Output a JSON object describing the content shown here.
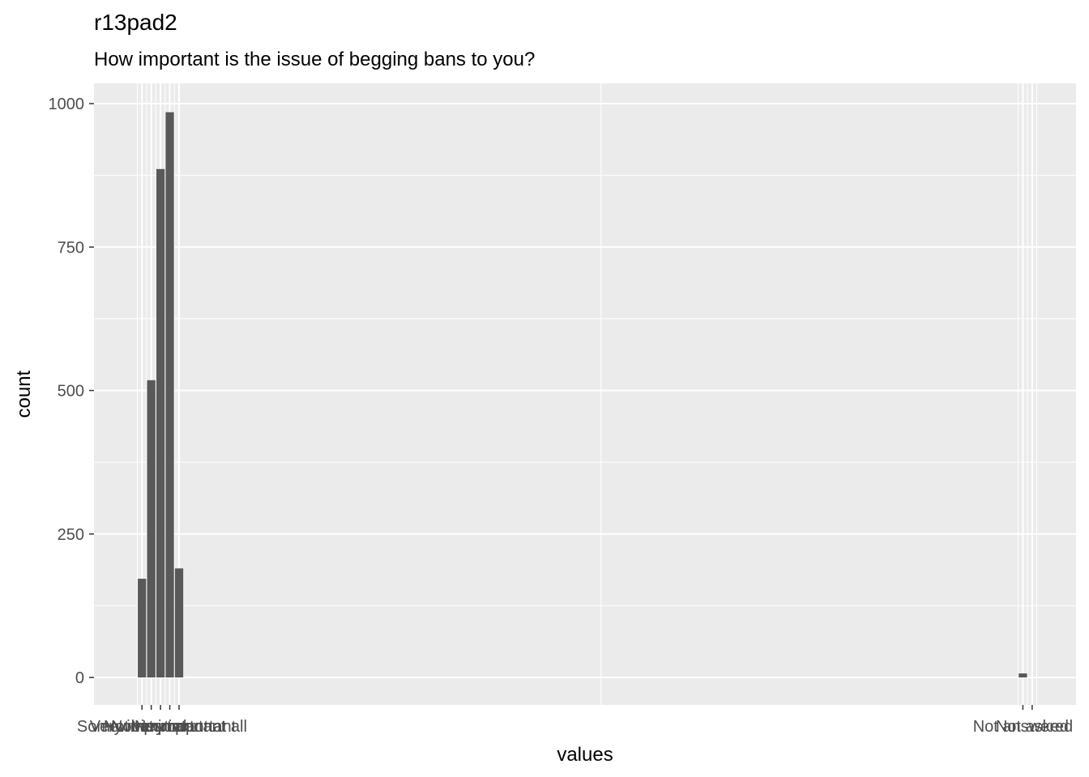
{
  "chart_data": {
    "type": "bar",
    "title": "r13pad2",
    "subtitle": "How important is the issue of begging bans to you?",
    "xlabel": "values",
    "ylabel": "count",
    "ylim": [
      0,
      1030
    ],
    "yticks": [
      0,
      250,
      500,
      750,
      1000
    ],
    "grid": true,
    "categories": [
      {
        "label": "Very important",
        "x": 1,
        "value": 172
      },
      {
        "label": "Somewhat important",
        "x": 2,
        "value": 518
      },
      {
        "label": "Neutral",
        "x": 3,
        "value": 886
      },
      {
        "label": "Not very important",
        "x": 4,
        "value": 985
      },
      {
        "label": "Not important at all",
        "x": 5,
        "value": 190
      },
      {
        "label": "Not answered",
        "x": 96,
        "value": 7
      },
      {
        "label": "Not asked",
        "x": 97,
        "value": 0
      }
    ]
  }
}
